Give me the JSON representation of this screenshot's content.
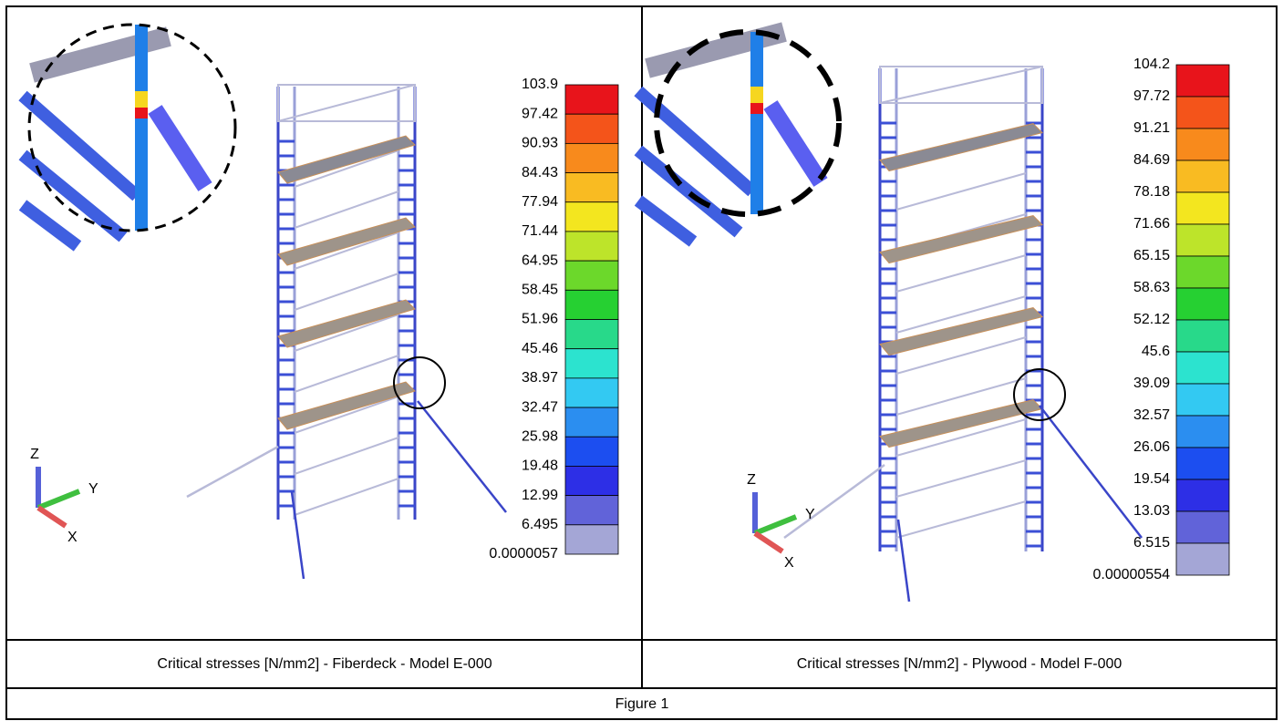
{
  "panels": [
    {
      "legend": {
        "labels": [
          "103.9",
          "97.42",
          "90.93",
          "84.43",
          "77.94",
          "71.44",
          "64.95",
          "58.45",
          "51.96",
          "45.46",
          "38.97",
          "32.47",
          "25.98",
          "19.48",
          "12.99",
          "6.495",
          "0.0000057"
        ]
      },
      "axes": {
        "z": "Z",
        "y": "Y",
        "x": "X"
      },
      "caption": "Critical stresses [N/mm2] - Fiberdeck - Model E-000"
    },
    {
      "legend": {
        "labels": [
          "104.2",
          "97.72",
          "91.21",
          "84.69",
          "78.18",
          "71.66",
          "65.15",
          "58.63",
          "52.12",
          "45.6",
          "39.09",
          "32.57",
          "26.06",
          "19.54",
          "13.03",
          "6.515",
          "0.00000554"
        ]
      },
      "axes": {
        "z": "Z",
        "y": "Y",
        "x": "X"
      },
      "caption": "Critical stresses [N/mm2] - Plywood - Model F-000"
    }
  ],
  "figure": {
    "label": "Figure 1"
  }
}
